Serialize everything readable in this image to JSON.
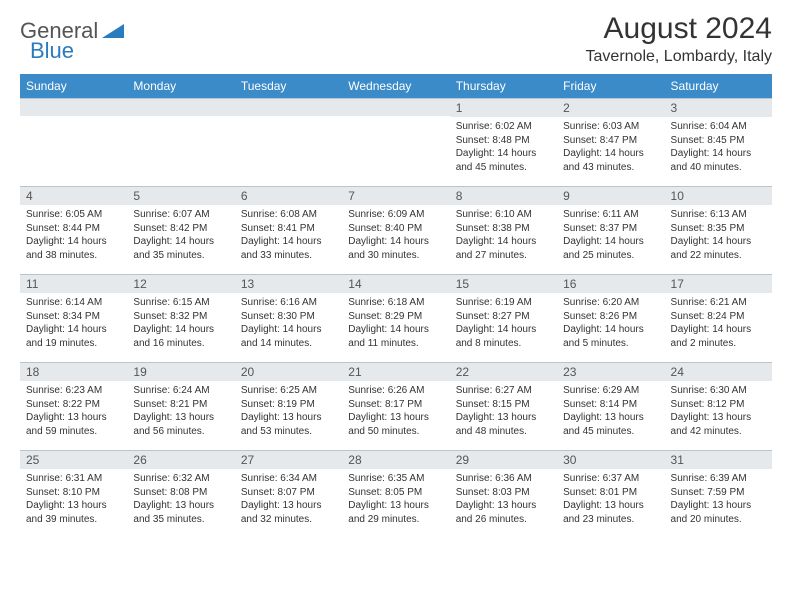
{
  "logo": {
    "text_general": "General",
    "text_blue": "Blue"
  },
  "title": "August 2024",
  "location": "Tavernole, Lombardy, Italy",
  "colors": {
    "header_bg": "#3b8bc9",
    "header_text": "#ffffff",
    "daynum_bg": "#e6e9ec",
    "border": "#b8c5d0",
    "text": "#333333",
    "logo_blue": "#2b7bbf"
  },
  "weekdays": [
    "Sunday",
    "Monday",
    "Tuesday",
    "Wednesday",
    "Thursday",
    "Friday",
    "Saturday"
  ],
  "weeks": [
    [
      {
        "n": "",
        "sr": "",
        "ss": "",
        "dl": ""
      },
      {
        "n": "",
        "sr": "",
        "ss": "",
        "dl": ""
      },
      {
        "n": "",
        "sr": "",
        "ss": "",
        "dl": ""
      },
      {
        "n": "",
        "sr": "",
        "ss": "",
        "dl": ""
      },
      {
        "n": "1",
        "sr": "Sunrise: 6:02 AM",
        "ss": "Sunset: 8:48 PM",
        "dl": "Daylight: 14 hours and 45 minutes."
      },
      {
        "n": "2",
        "sr": "Sunrise: 6:03 AM",
        "ss": "Sunset: 8:47 PM",
        "dl": "Daylight: 14 hours and 43 minutes."
      },
      {
        "n": "3",
        "sr": "Sunrise: 6:04 AM",
        "ss": "Sunset: 8:45 PM",
        "dl": "Daylight: 14 hours and 40 minutes."
      }
    ],
    [
      {
        "n": "4",
        "sr": "Sunrise: 6:05 AM",
        "ss": "Sunset: 8:44 PM",
        "dl": "Daylight: 14 hours and 38 minutes."
      },
      {
        "n": "5",
        "sr": "Sunrise: 6:07 AM",
        "ss": "Sunset: 8:42 PM",
        "dl": "Daylight: 14 hours and 35 minutes."
      },
      {
        "n": "6",
        "sr": "Sunrise: 6:08 AM",
        "ss": "Sunset: 8:41 PM",
        "dl": "Daylight: 14 hours and 33 minutes."
      },
      {
        "n": "7",
        "sr": "Sunrise: 6:09 AM",
        "ss": "Sunset: 8:40 PM",
        "dl": "Daylight: 14 hours and 30 minutes."
      },
      {
        "n": "8",
        "sr": "Sunrise: 6:10 AM",
        "ss": "Sunset: 8:38 PM",
        "dl": "Daylight: 14 hours and 27 minutes."
      },
      {
        "n": "9",
        "sr": "Sunrise: 6:11 AM",
        "ss": "Sunset: 8:37 PM",
        "dl": "Daylight: 14 hours and 25 minutes."
      },
      {
        "n": "10",
        "sr": "Sunrise: 6:13 AM",
        "ss": "Sunset: 8:35 PM",
        "dl": "Daylight: 14 hours and 22 minutes."
      }
    ],
    [
      {
        "n": "11",
        "sr": "Sunrise: 6:14 AM",
        "ss": "Sunset: 8:34 PM",
        "dl": "Daylight: 14 hours and 19 minutes."
      },
      {
        "n": "12",
        "sr": "Sunrise: 6:15 AM",
        "ss": "Sunset: 8:32 PM",
        "dl": "Daylight: 14 hours and 16 minutes."
      },
      {
        "n": "13",
        "sr": "Sunrise: 6:16 AM",
        "ss": "Sunset: 8:30 PM",
        "dl": "Daylight: 14 hours and 14 minutes."
      },
      {
        "n": "14",
        "sr": "Sunrise: 6:18 AM",
        "ss": "Sunset: 8:29 PM",
        "dl": "Daylight: 14 hours and 11 minutes."
      },
      {
        "n": "15",
        "sr": "Sunrise: 6:19 AM",
        "ss": "Sunset: 8:27 PM",
        "dl": "Daylight: 14 hours and 8 minutes."
      },
      {
        "n": "16",
        "sr": "Sunrise: 6:20 AM",
        "ss": "Sunset: 8:26 PM",
        "dl": "Daylight: 14 hours and 5 minutes."
      },
      {
        "n": "17",
        "sr": "Sunrise: 6:21 AM",
        "ss": "Sunset: 8:24 PM",
        "dl": "Daylight: 14 hours and 2 minutes."
      }
    ],
    [
      {
        "n": "18",
        "sr": "Sunrise: 6:23 AM",
        "ss": "Sunset: 8:22 PM",
        "dl": "Daylight: 13 hours and 59 minutes."
      },
      {
        "n": "19",
        "sr": "Sunrise: 6:24 AM",
        "ss": "Sunset: 8:21 PM",
        "dl": "Daylight: 13 hours and 56 minutes."
      },
      {
        "n": "20",
        "sr": "Sunrise: 6:25 AM",
        "ss": "Sunset: 8:19 PM",
        "dl": "Daylight: 13 hours and 53 minutes."
      },
      {
        "n": "21",
        "sr": "Sunrise: 6:26 AM",
        "ss": "Sunset: 8:17 PM",
        "dl": "Daylight: 13 hours and 50 minutes."
      },
      {
        "n": "22",
        "sr": "Sunrise: 6:27 AM",
        "ss": "Sunset: 8:15 PM",
        "dl": "Daylight: 13 hours and 48 minutes."
      },
      {
        "n": "23",
        "sr": "Sunrise: 6:29 AM",
        "ss": "Sunset: 8:14 PM",
        "dl": "Daylight: 13 hours and 45 minutes."
      },
      {
        "n": "24",
        "sr": "Sunrise: 6:30 AM",
        "ss": "Sunset: 8:12 PM",
        "dl": "Daylight: 13 hours and 42 minutes."
      }
    ],
    [
      {
        "n": "25",
        "sr": "Sunrise: 6:31 AM",
        "ss": "Sunset: 8:10 PM",
        "dl": "Daylight: 13 hours and 39 minutes."
      },
      {
        "n": "26",
        "sr": "Sunrise: 6:32 AM",
        "ss": "Sunset: 8:08 PM",
        "dl": "Daylight: 13 hours and 35 minutes."
      },
      {
        "n": "27",
        "sr": "Sunrise: 6:34 AM",
        "ss": "Sunset: 8:07 PM",
        "dl": "Daylight: 13 hours and 32 minutes."
      },
      {
        "n": "28",
        "sr": "Sunrise: 6:35 AM",
        "ss": "Sunset: 8:05 PM",
        "dl": "Daylight: 13 hours and 29 minutes."
      },
      {
        "n": "29",
        "sr": "Sunrise: 6:36 AM",
        "ss": "Sunset: 8:03 PM",
        "dl": "Daylight: 13 hours and 26 minutes."
      },
      {
        "n": "30",
        "sr": "Sunrise: 6:37 AM",
        "ss": "Sunset: 8:01 PM",
        "dl": "Daylight: 13 hours and 23 minutes."
      },
      {
        "n": "31",
        "sr": "Sunrise: 6:39 AM",
        "ss": "Sunset: 7:59 PM",
        "dl": "Daylight: 13 hours and 20 minutes."
      }
    ]
  ]
}
